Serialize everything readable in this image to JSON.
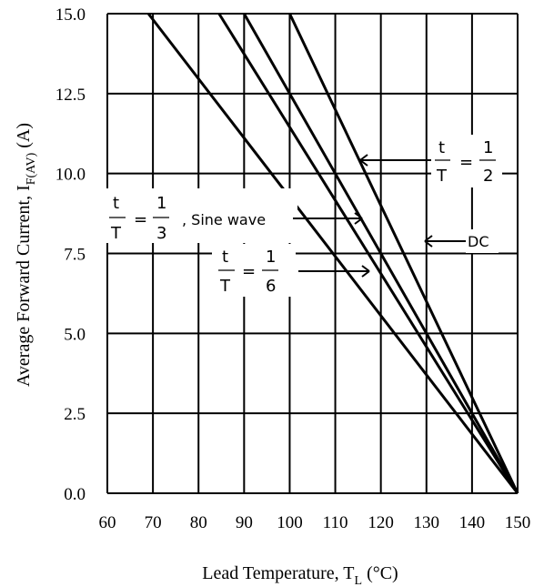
{
  "chart_data": {
    "type": "line",
    "title": "",
    "xlabel": {
      "main": "Lead Temperature, T",
      "sub": "L",
      "unit": " (°C)"
    },
    "ylabel": {
      "main": "Average Forward Current, I",
      "sub": "F(AV)",
      "unit": " (A)"
    },
    "xlim": [
      60,
      150
    ],
    "ylim": [
      0,
      15
    ],
    "x_ticks": [
      "60",
      "70",
      "80",
      "90",
      "100",
      "110",
      "120",
      "130",
      "140",
      "150"
    ],
    "y_ticks": [
      "0.0",
      "2.5",
      "5.0",
      "7.5",
      "10.0",
      "12.5",
      "15.0"
    ],
    "grid": true,
    "series": [
      {
        "name": "DC",
        "x": [
          100,
          150
        ],
        "y": [
          15,
          0
        ]
      },
      {
        "name": "t/T = 1/2",
        "x": [
          90,
          150
        ],
        "y": [
          15,
          0
        ]
      },
      {
        "name": "t/T = 1/3, Sine wave",
        "x": [
          84.5,
          150
        ],
        "y": [
          15,
          0
        ]
      },
      {
        "name": "t/T = 1/6",
        "x": [
          69,
          150
        ],
        "y": [
          15,
          0
        ]
      }
    ],
    "annotations": {
      "half": {
        "t": "t",
        "T": "T",
        "eq": "=",
        "num": "1",
        "den": "2"
      },
      "third": {
        "t": "t",
        "T": "T",
        "eq": "=",
        "num": "1",
        "den": "3",
        "suffix": ", Sine wave"
      },
      "sixth": {
        "t": "t",
        "T": "T",
        "eq": "=",
        "num": "1",
        "den": "6"
      },
      "dc": "DC"
    }
  }
}
